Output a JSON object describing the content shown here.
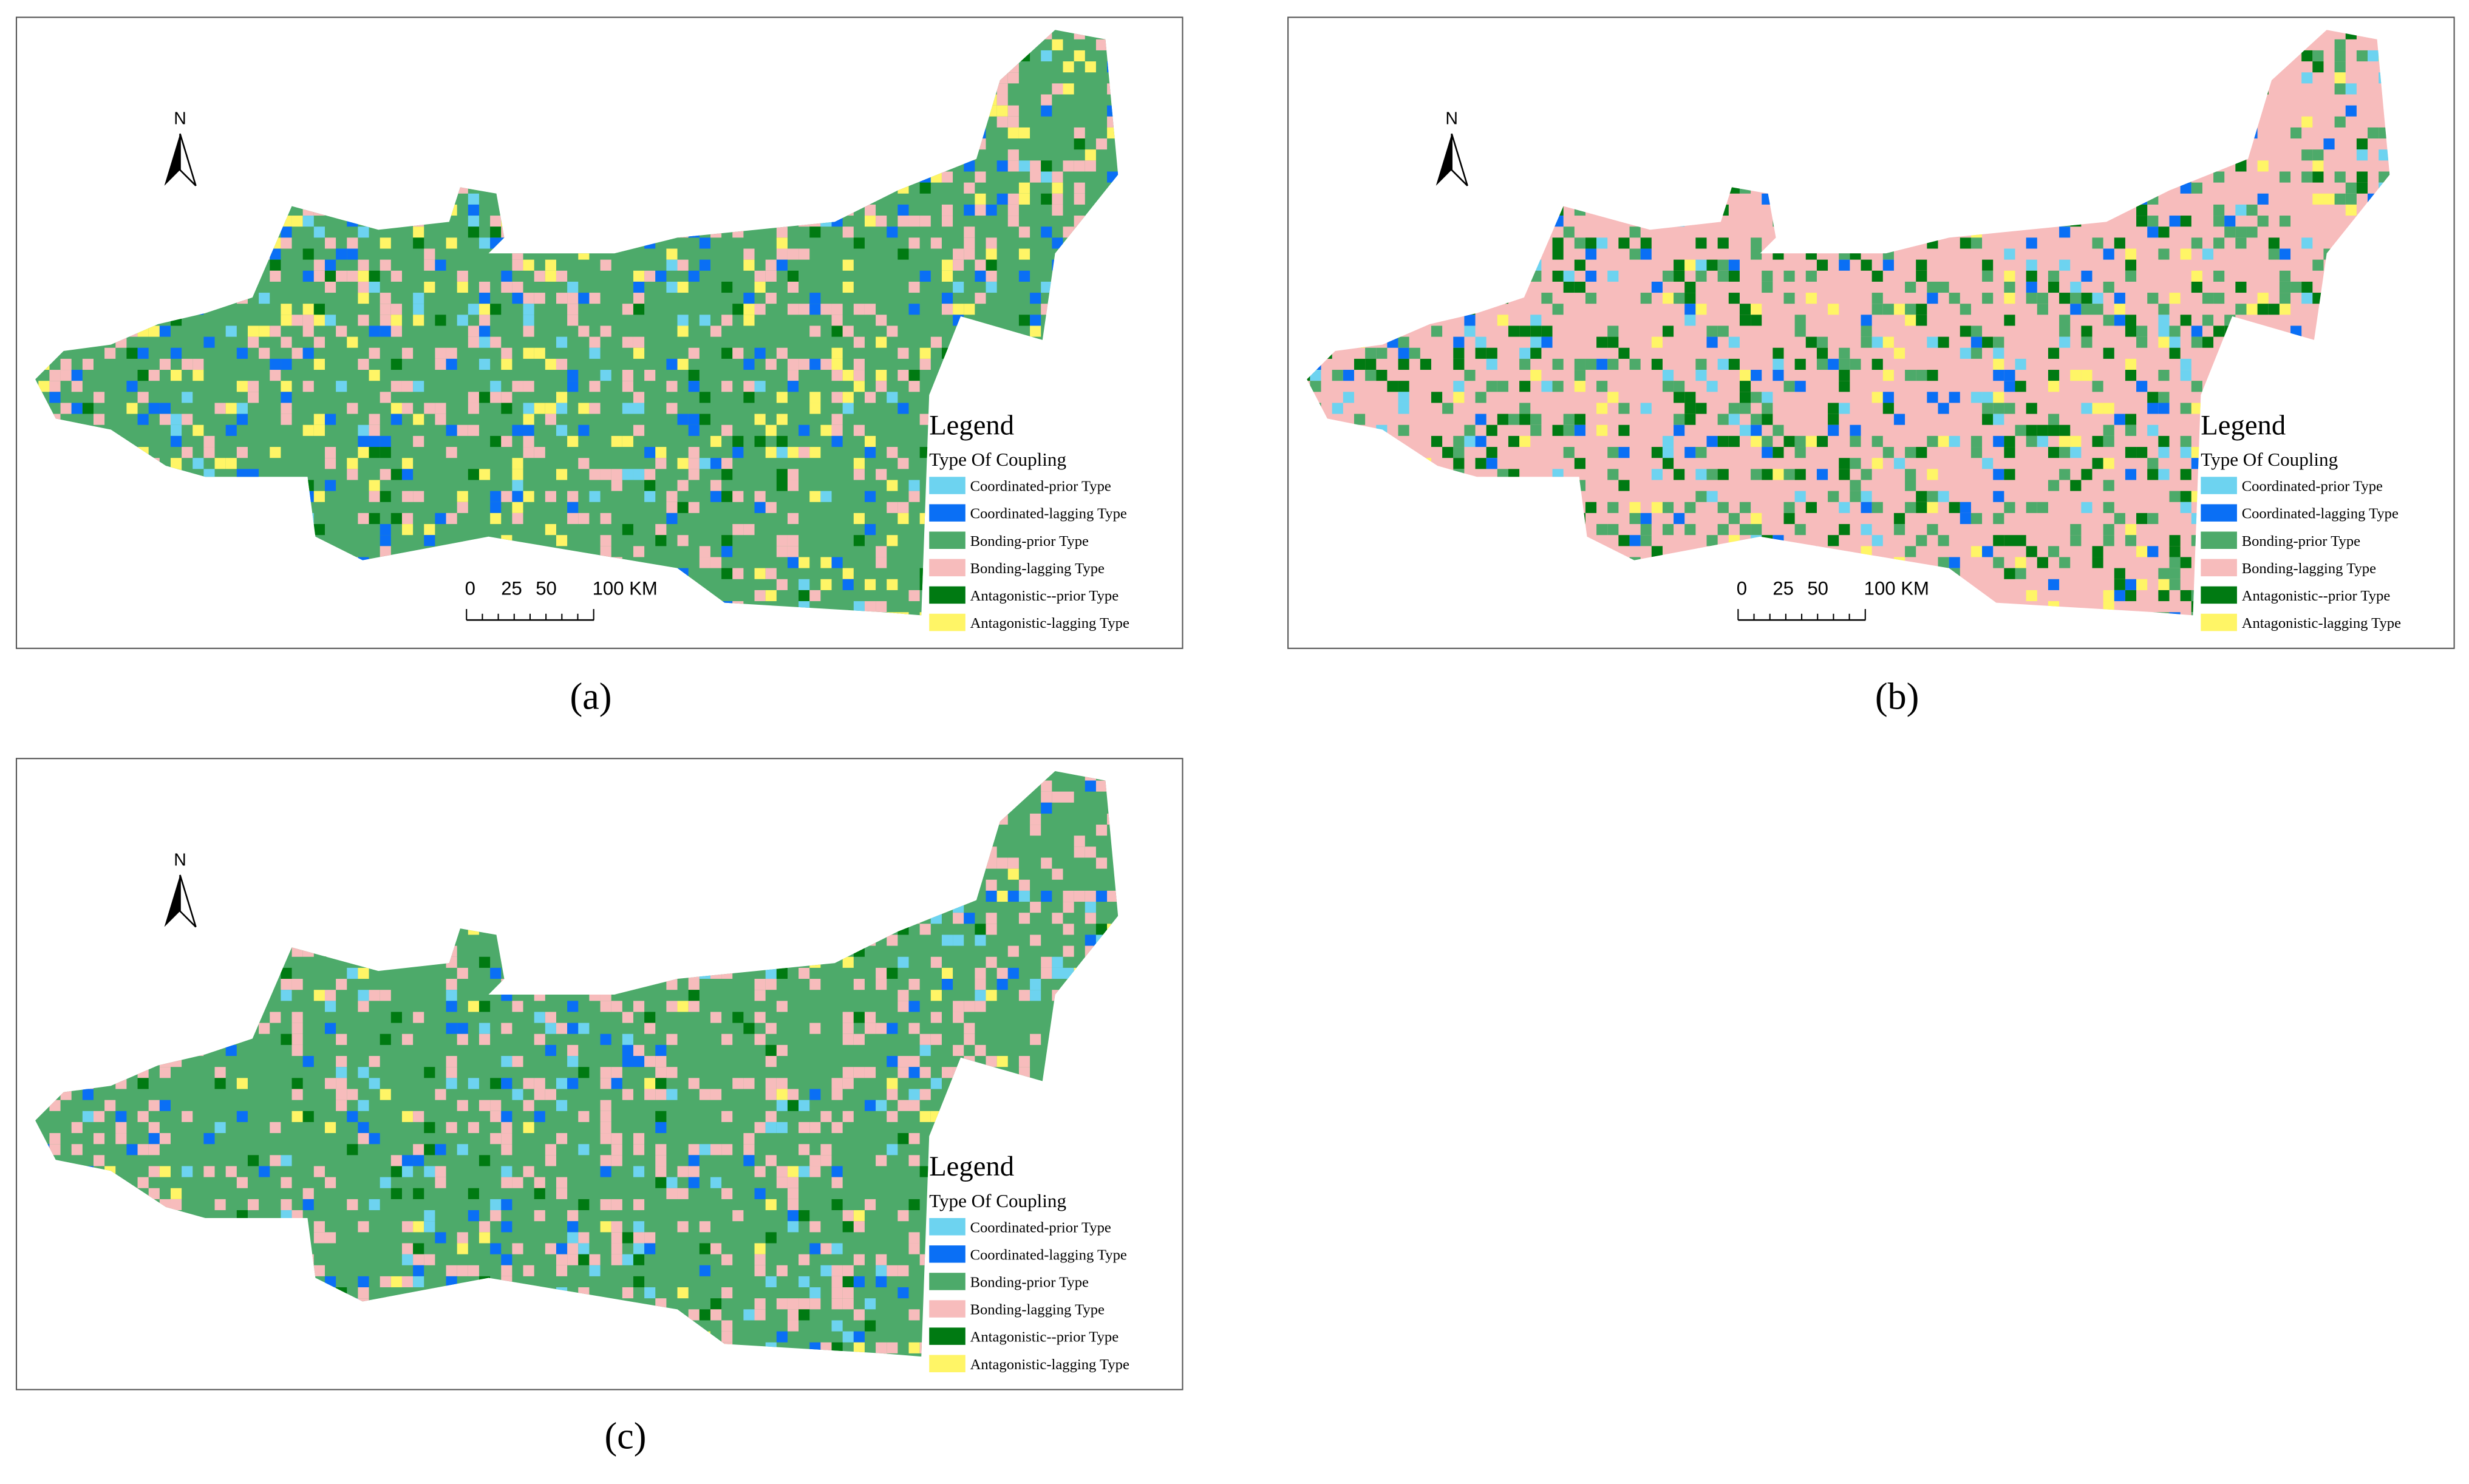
{
  "panels": [
    {
      "label": "(a)",
      "north": "N",
      "scale_bar": [
        "0",
        "25",
        "50",
        "100 KM"
      ],
      "legend": {
        "title": "Legend",
        "subtitle": "Type Of Coupling",
        "items": [
          {
            "name": "Coordinated-prior Type",
            "color": "#6dd3f0"
          },
          {
            "name": "Coordinated-lagging Type",
            "color": "#0a6ff5"
          },
          {
            "name": "Bonding-prior Type",
            "color": "#4daa6a"
          },
          {
            "name": "Bonding-lagging Type",
            "color": "#f7bcbc"
          },
          {
            "name": "Antagonistic--prior Type",
            "color": "#007a12"
          },
          {
            "name": "Antagonistic-lagging Type",
            "color": "#fff566"
          }
        ]
      }
    },
    {
      "label": "(b)",
      "north": "N",
      "scale_bar": [
        "0",
        "25",
        "50",
        "100 KM"
      ],
      "legend": {
        "title": "Legend",
        "subtitle": "Type Of Coupling",
        "items": [
          {
            "name": "Coordinated-prior Type",
            "color": "#6dd3f0"
          },
          {
            "name": "Coordinated-lagging Type",
            "color": "#0a6ff5"
          },
          {
            "name": "Bonding-prior Type",
            "color": "#4daa6a"
          },
          {
            "name": "Bonding-lagging Type",
            "color": "#f7bcbc"
          },
          {
            "name": "Antagonistic--prior Type",
            "color": "#007a12"
          },
          {
            "name": "Antagonistic-lagging Type",
            "color": "#fff566"
          }
        ]
      }
    },
    {
      "label": "(c)",
      "north": "N",
      "legend": {
        "title": "Legend",
        "subtitle": "Type Of Coupling",
        "items": [
          {
            "name": "Coordinated-prior Type",
            "color": "#6dd3f0"
          },
          {
            "name": "Coordinated-lagging Type",
            "color": "#0a6ff5"
          },
          {
            "name": "Bonding-prior Type",
            "color": "#4daa6a"
          },
          {
            "name": "Bonding-lagging Type",
            "color": "#f7bcbc"
          },
          {
            "name": "Antagonistic--prior Type",
            "color": "#007a12"
          },
          {
            "name": "Antagonistic-lagging Type",
            "color": "#fff566"
          }
        ]
      }
    }
  ]
}
